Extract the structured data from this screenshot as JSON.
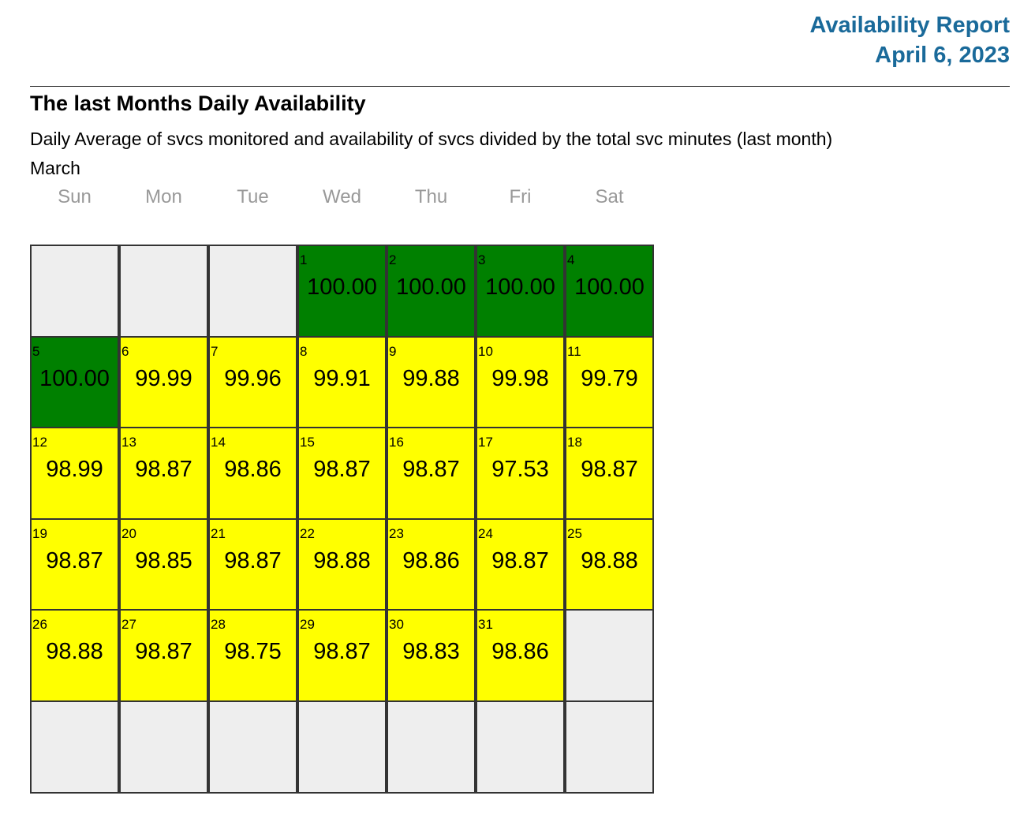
{
  "header": {
    "title": "Availability Report",
    "date": "April 6, 2023"
  },
  "section": {
    "title": "The last Months Daily Availability",
    "description": "Daily Average of svcs monitored and availability of svcs divided by the total svc minutes (last month)",
    "month": "March"
  },
  "calendar": {
    "weekdays": [
      "Sun",
      "Mon",
      "Tue",
      "Wed",
      "Thu",
      "Fri",
      "Sat"
    ],
    "weeks": [
      [
        null,
        null,
        null,
        {
          "day": "1",
          "value": "100.00",
          "color": "#008000"
        },
        {
          "day": "2",
          "value": "100.00",
          "color": "#008000"
        },
        {
          "day": "3",
          "value": "100.00",
          "color": "#008000"
        },
        {
          "day": "4",
          "value": "100.00",
          "color": "#008000"
        }
      ],
      [
        {
          "day": "5",
          "value": "100.00",
          "color": "#008000"
        },
        {
          "day": "6",
          "value": "99.99",
          "color": "#ffff00"
        },
        {
          "day": "7",
          "value": "99.96",
          "color": "#ffff00"
        },
        {
          "day": "8",
          "value": "99.91",
          "color": "#ffff00"
        },
        {
          "day": "9",
          "value": "99.88",
          "color": "#ffff00"
        },
        {
          "day": "10",
          "value": "99.98",
          "color": "#ffff00"
        },
        {
          "day": "11",
          "value": "99.79",
          "color": "#ffff00"
        }
      ],
      [
        {
          "day": "12",
          "value": "98.99",
          "color": "#ffff00"
        },
        {
          "day": "13",
          "value": "98.87",
          "color": "#ffff00"
        },
        {
          "day": "14",
          "value": "98.86",
          "color": "#ffff00"
        },
        {
          "day": "15",
          "value": "98.87",
          "color": "#ffff00"
        },
        {
          "day": "16",
          "value": "98.87",
          "color": "#ffff00"
        },
        {
          "day": "17",
          "value": "97.53",
          "color": "#ffff00"
        },
        {
          "day": "18",
          "value": "98.87",
          "color": "#ffff00"
        }
      ],
      [
        {
          "day": "19",
          "value": "98.87",
          "color": "#ffff00"
        },
        {
          "day": "20",
          "value": "98.85",
          "color": "#ffff00"
        },
        {
          "day": "21",
          "value": "98.87",
          "color": "#ffff00"
        },
        {
          "day": "22",
          "value": "98.88",
          "color": "#ffff00"
        },
        {
          "day": "23",
          "value": "98.86",
          "color": "#ffff00"
        },
        {
          "day": "24",
          "value": "98.87",
          "color": "#ffff00"
        },
        {
          "day": "25",
          "value": "98.88",
          "color": "#ffff00"
        }
      ],
      [
        {
          "day": "26",
          "value": "98.88",
          "color": "#ffff00"
        },
        {
          "day": "27",
          "value": "98.87",
          "color": "#ffff00"
        },
        {
          "day": "28",
          "value": "98.75",
          "color": "#ffff00"
        },
        {
          "day": "29",
          "value": "98.87",
          "color": "#ffff00"
        },
        {
          "day": "30",
          "value": "98.83",
          "color": "#ffff00"
        },
        {
          "day": "31",
          "value": "98.86",
          "color": "#ffff00"
        },
        null
      ],
      [
        null,
        null,
        null,
        null,
        null,
        null,
        null
      ]
    ]
  }
}
